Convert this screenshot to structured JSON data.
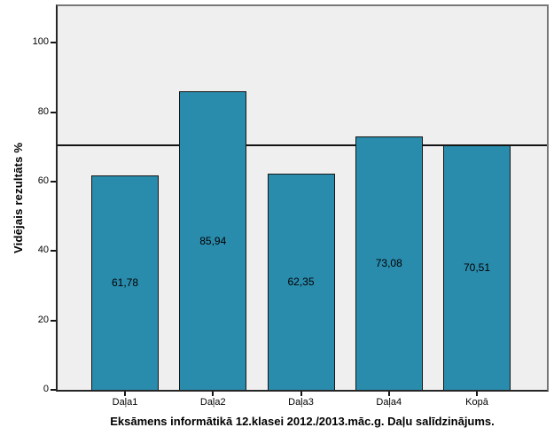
{
  "chart_data": {
    "type": "bar",
    "title": "Eksāmens informātikā 12.klasei 2012./2013.māc.g. Daļu salīdzinājums.",
    "ylabel": "Vidējais rezultāts %",
    "xlabel": "",
    "categories": [
      "Daļa1",
      "Daļa2",
      "Daļa3",
      "Daļa4",
      "Kopā"
    ],
    "values": [
      61.78,
      85.94,
      62.35,
      73.08,
      70.51
    ],
    "value_labels": [
      "61,78",
      "85,94",
      "62,35",
      "73,08",
      "70,51"
    ],
    "yticks": [
      "0",
      "20",
      "40",
      "60",
      "80",
      "100"
    ],
    "ylim": [
      0,
      110
    ],
    "reference_line": 70.51,
    "grid": false,
    "legend": "none",
    "value_label_position": "bar-center",
    "colors": {
      "bar_fill": "#2a8cad",
      "bar_border": "#161616",
      "plot_background": "#efefef",
      "frame_border": "#787878",
      "axis_line": "#262626",
      "reference_line": "#141414",
      "text": "#000000",
      "page_background": "#ffffff"
    }
  }
}
